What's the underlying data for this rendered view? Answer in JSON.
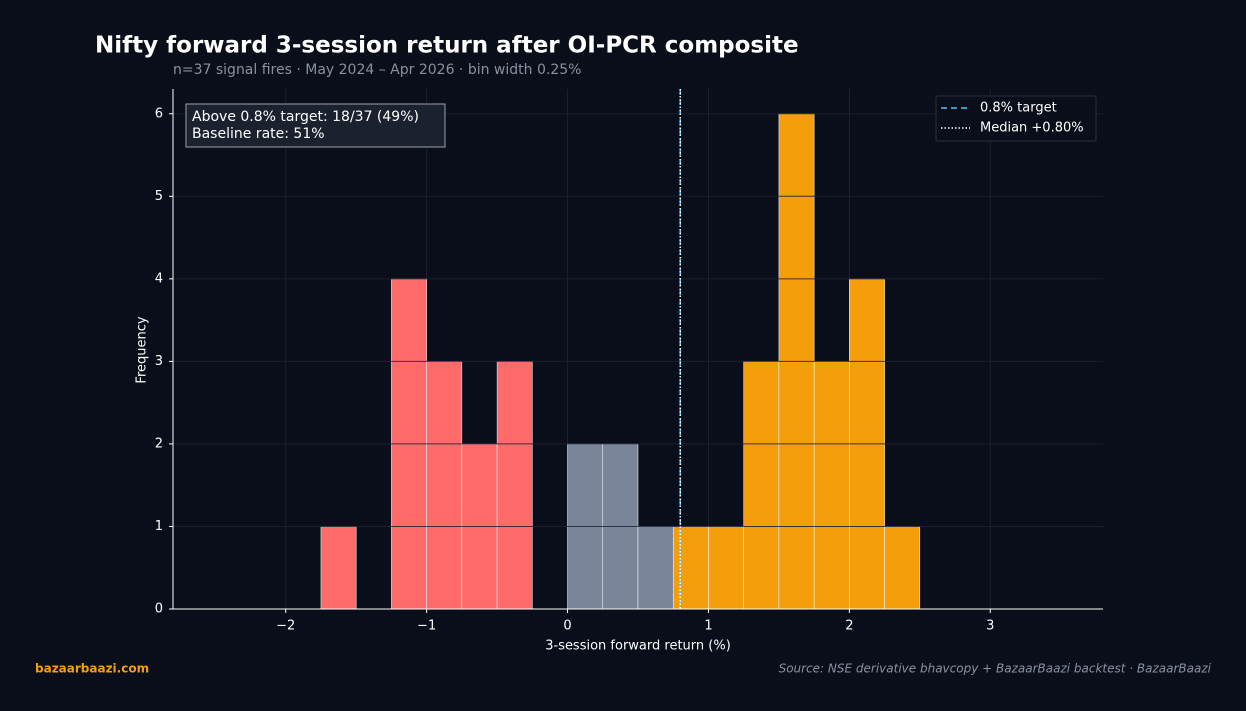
{
  "chart_data": {
    "type": "histogram",
    "title": "Nifty forward 3-session return after OI-PCR composite",
    "subtitle": "n=37 signal fires  ·  May 2024 – Apr 2026  ·  bin width 0.25%",
    "x_label": "3-session forward return (%)",
    "y_label": "Frequency",
    "bins": [
      -1.75,
      -1.5,
      -1.25,
      -1.0,
      -0.75,
      -0.5,
      -0.25,
      0,
      0.25,
      0.5,
      0.75,
      1.0,
      1.25,
      1.5,
      1.75,
      2.0,
      2.25,
      2.5
    ],
    "counts": [
      1,
      0,
      4,
      3,
      2,
      3,
      0,
      2,
      2,
      1,
      1,
      1,
      3,
      6,
      3,
      4,
      1
    ],
    "colors": [
      "#ff6b6b",
      "#ff6b6b",
      "#ff6b6b",
      "#ff6b6b",
      "#ff6b6b",
      "#ff6b6b",
      "#7a8599",
      "#7a8599",
      "#7a8599",
      "#7a8599",
      "#f59e0b",
      "#f59e0b",
      "#f59e0b",
      "#f59e0b",
      "#f59e0b",
      "#f59e0b",
      "#f59e0b"
    ],
    "reference_lines": [
      {
        "name": "0.8% target",
        "value": 0.8,
        "color": "#4fc3f7",
        "style": "dashed"
      },
      {
        "name": "Median +0.80%",
        "value": 0.8,
        "color": "#ffffff",
        "style": "dotted"
      }
    ],
    "annotation": [
      "Above 0.8% target: 18/37 (49%)",
      "Baseline rate: 51%"
    ],
    "xlim": [
      -2.8,
      3.8
    ],
    "ylim": [
      0,
      6.3
    ],
    "xticks": [
      {
        "value": -2,
        "label": "−2"
      },
      {
        "value": -1,
        "label": "−1"
      },
      0,
      1,
      2,
      3
    ],
    "yticks": [
      0,
      1,
      2,
      3,
      4,
      5,
      6
    ],
    "grid": true,
    "legend": "upper right",
    "brand": "bazaarbaazi.com",
    "source": "Source: NSE derivative bhavcopy + BazaarBaazi backtest  ·  BazaarBaazi"
  }
}
